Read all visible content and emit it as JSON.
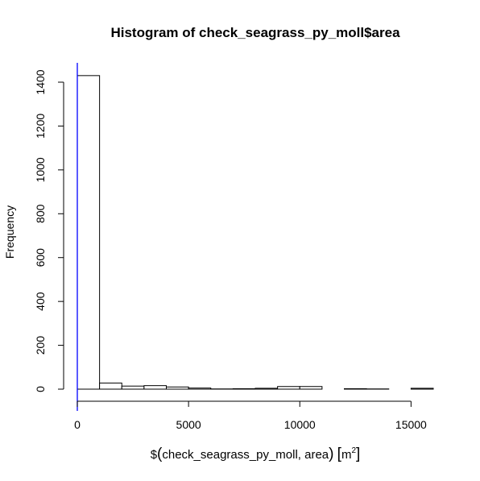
{
  "chart_data": {
    "type": "bar",
    "title": "Histogram of check_seagrass_py_moll$area",
    "xlabel": {
      "prefix": "$",
      "open_paren": "(",
      "inner": "check_seagrass_py_moll, area",
      "close_paren": ")",
      "unit_open": "[",
      "unit": "m",
      "unit_exponent": "2",
      "unit_close": "]"
    },
    "ylabel": "Frequency",
    "xlim": [
      0,
      16000
    ],
    "ylim": [
      0,
      1400
    ],
    "x_ticks": [
      0,
      5000,
      10000,
      15000
    ],
    "y_ticks": [
      0,
      200,
      400,
      600,
      800,
      1000,
      1200,
      1400
    ],
    "bin_width": 1000,
    "bin_starts": [
      0,
      1000,
      2000,
      3000,
      4000,
      5000,
      6000,
      7000,
      8000,
      9000,
      10000,
      11000,
      12000,
      13000,
      14000,
      15000
    ],
    "values": [
      1430,
      28,
      14,
      16,
      10,
      5,
      1,
      2,
      4,
      12,
      12,
      0,
      2,
      1,
      0,
      4
    ],
    "vline_x": 0,
    "vline_color": "#0000ff",
    "bar_fill": "#ffffff",
    "bar_stroke": "#000000"
  }
}
